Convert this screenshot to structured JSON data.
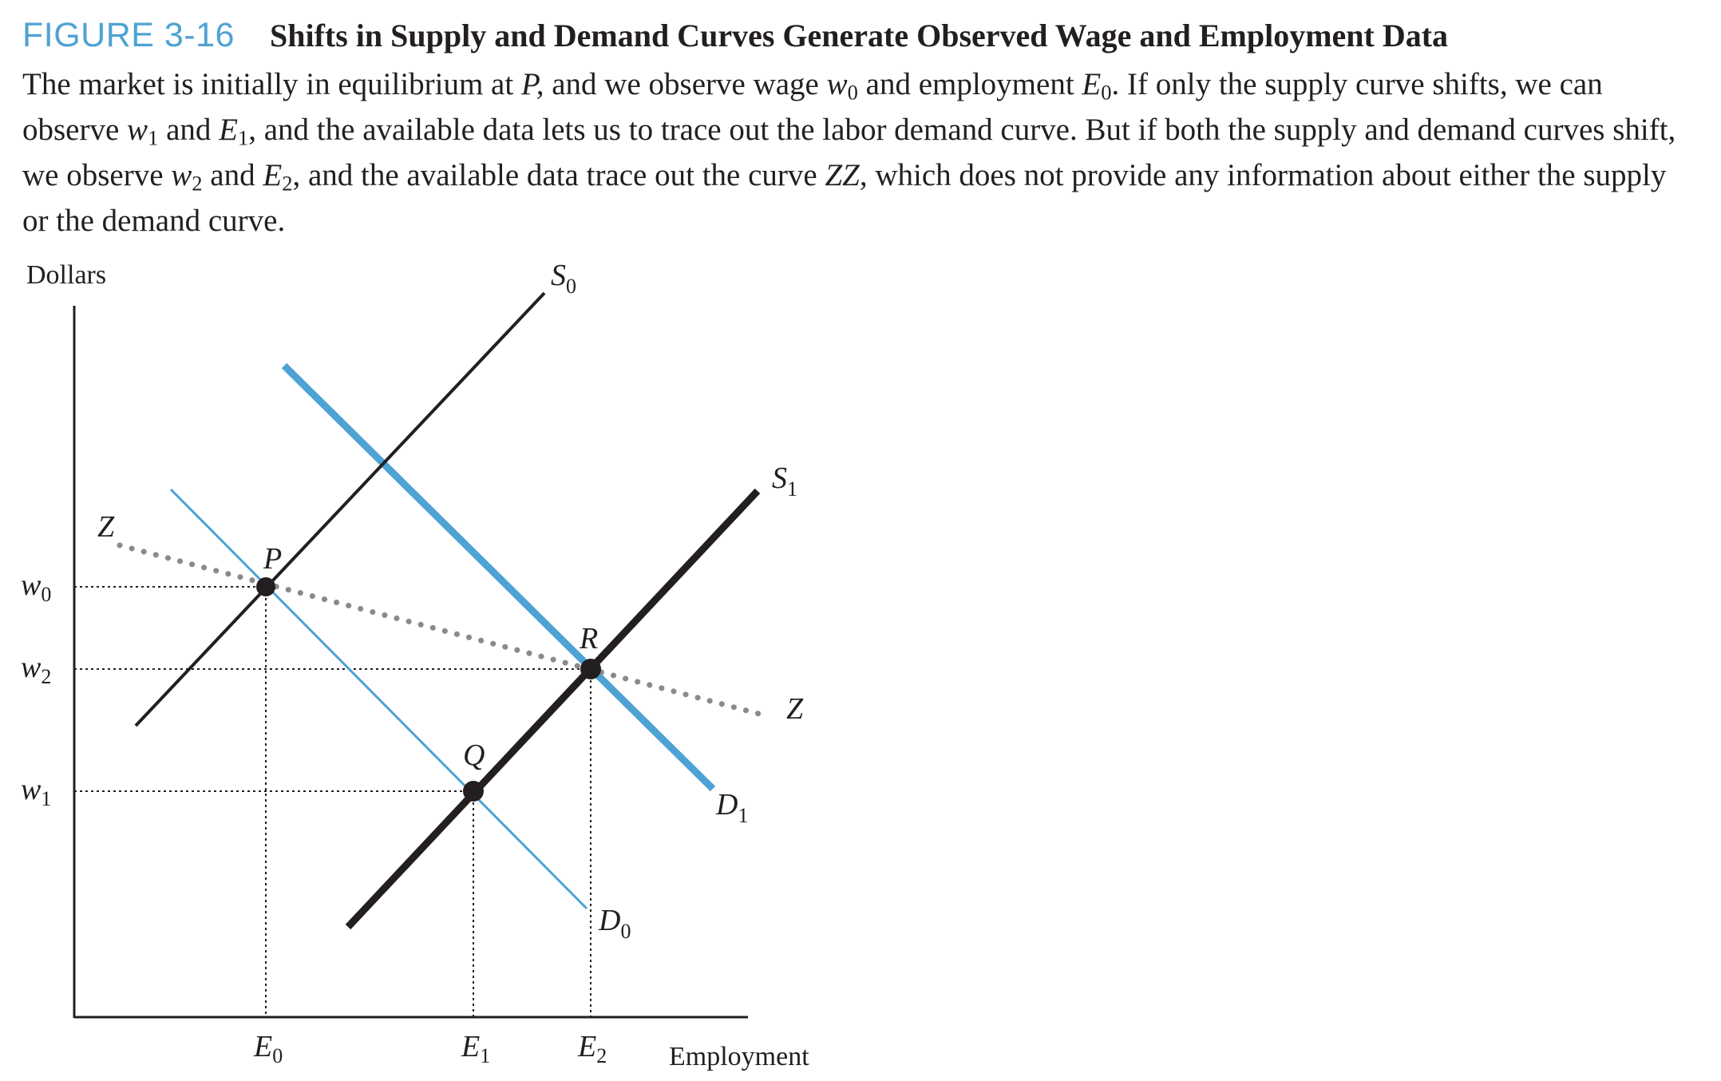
{
  "figure": {
    "number": "FIGURE 3-16",
    "title": "Shifts in Supply and Demand Curves Generate Observed Wage and Employment Data",
    "description": {
      "s1": "The market is initially in equilibrium at ",
      "P": "P,",
      "s2": " and we observe wage ",
      "w": "w",
      "sub0": "0",
      "s3": " and employment ",
      "E": "E",
      "s4": ". If only the supply curve shifts, we can observe ",
      "sub1": "1",
      "s5": " and ",
      "s6": ", and the available data lets us to trace out the labor demand curve. But if both the supply and demand curves shift, we observe ",
      "sub2": "2",
      "s7": ", and the available data trace out the curve ",
      "ZZ": "ZZ,",
      "s8": " which does not provide any information about either the supply or the demand curve."
    }
  },
  "axes": {
    "y_label": "Dollars",
    "x_label": "Employment"
  },
  "labels": {
    "S0": "S",
    "S0_sub": "0",
    "S1": "S",
    "S1_sub": "1",
    "D0": "D",
    "D0_sub": "0",
    "D1": "D",
    "D1_sub": "1",
    "Z_left": "Z",
    "Z_right": "Z",
    "P": "P",
    "Q": "Q",
    "R": "R",
    "w0": "w",
    "w0_sub": "0",
    "w2": "w",
    "w2_sub": "2",
    "w1": "w",
    "w1_sub": "1",
    "E0": "E",
    "E0_sub": "0",
    "E1": "E",
    "E1_sub": "1",
    "E2": "E",
    "E2_sub": "2"
  },
  "colors": {
    "accent_blue": "#4ea2d4",
    "black": "#231f20",
    "zz_gray": "#8a8a8a"
  }
}
